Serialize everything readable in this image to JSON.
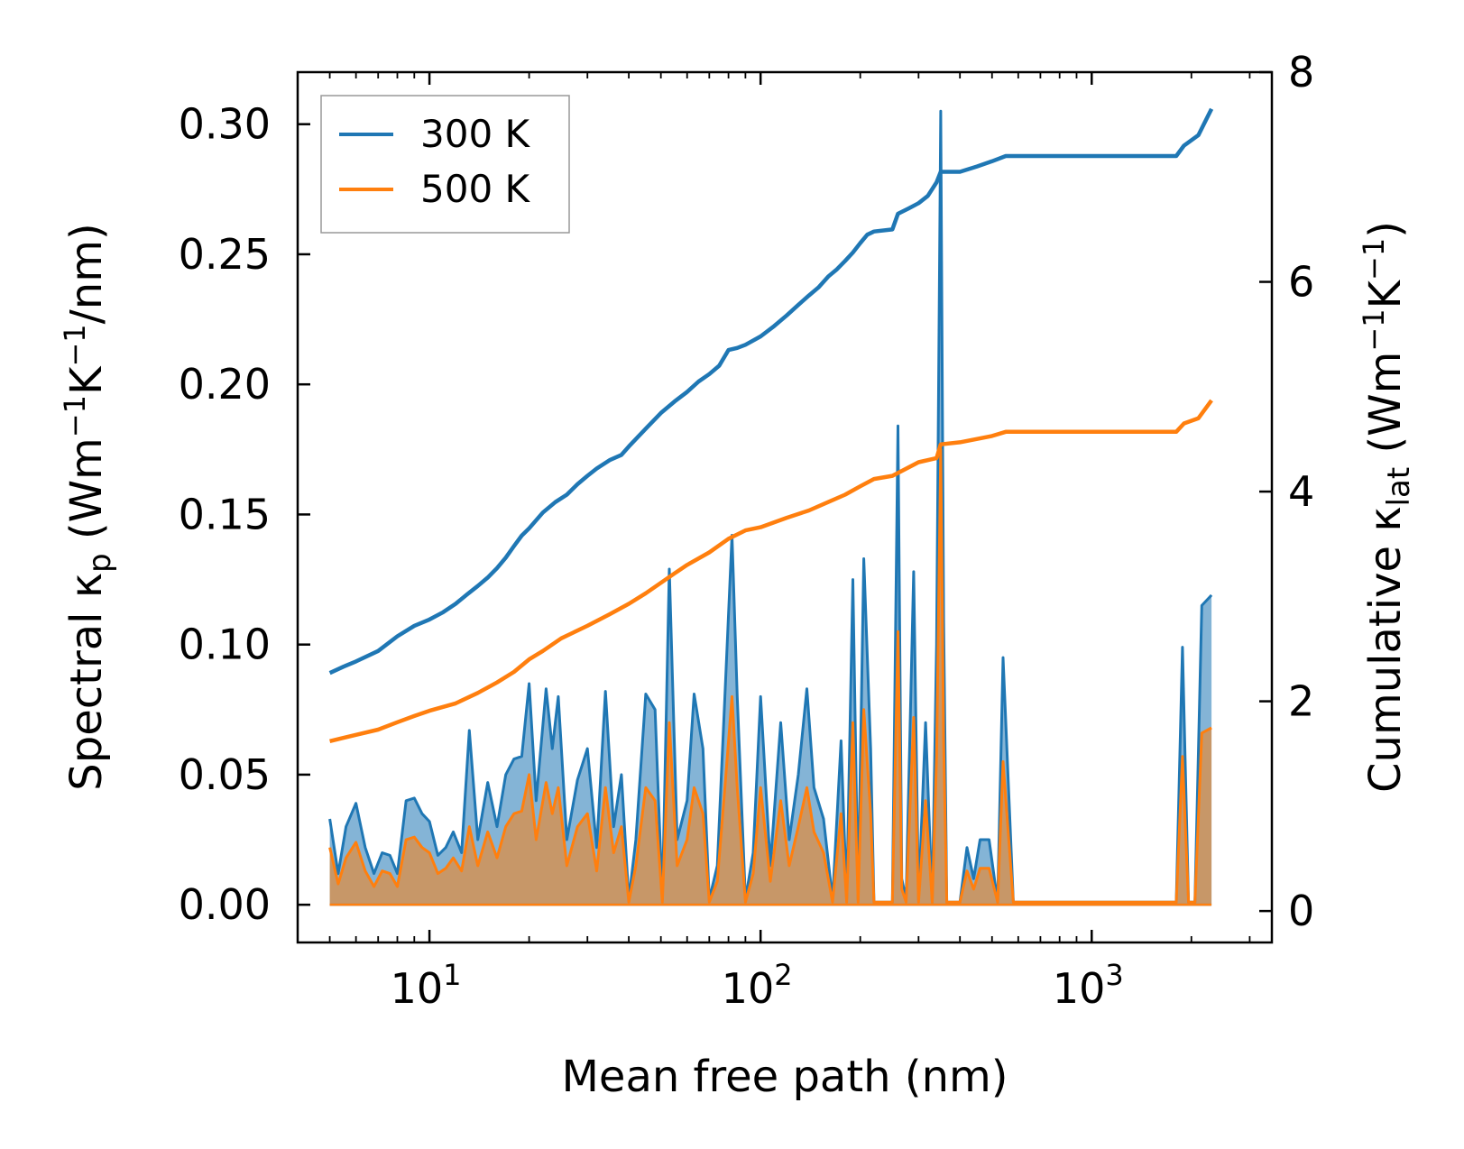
{
  "chart_data": {
    "type": "line",
    "xscale": "log",
    "xlabel": "Mean free path (nm)",
    "ylabel_left": {
      "main": "Spectral κ",
      "sub": "p",
      "unit_open": " (Wm",
      "exp1": "−1",
      "unit_mid": "K",
      "exp2": "−1",
      "unit_close": "/nm)"
    },
    "ylabel_right": {
      "main": "Cumulative κ",
      "sub": "lat",
      "unit_open": " (Wm",
      "exp1": "−1",
      "unit_mid": "K",
      "exp2": "−1",
      "unit_close": ")"
    },
    "xlim": [
      4,
      3500
    ],
    "ylim_left": [
      -0.0145,
      0.32
    ],
    "ylim_right": [
      -0.3,
      8
    ],
    "x_ticks": [
      {
        "value": 10,
        "base": "10",
        "exp": "1"
      },
      {
        "value": 100,
        "base": "10",
        "exp": "2"
      },
      {
        "value": 1000,
        "base": "10",
        "exp": "3"
      }
    ],
    "y_left_ticks": [
      {
        "value": 0.0,
        "label": "0.00"
      },
      {
        "value": 0.05,
        "label": "0.05"
      },
      {
        "value": 0.1,
        "label": "0.10"
      },
      {
        "value": 0.15,
        "label": "0.15"
      },
      {
        "value": 0.2,
        "label": "0.20"
      },
      {
        "value": 0.25,
        "label": "0.25"
      },
      {
        "value": 0.3,
        "label": "0.30"
      }
    ],
    "y_right_ticks": [
      {
        "value": 0,
        "label": "0"
      },
      {
        "value": 2,
        "label": "2"
      },
      {
        "value": 4,
        "label": "4"
      },
      {
        "value": 6,
        "label": "6"
      },
      {
        "value": 8,
        "label": "8"
      }
    ],
    "legend": {
      "position": "upper-left",
      "entries": [
        {
          "label": "300 K",
          "color": "#1f77b4"
        },
        {
          "label": "500 K",
          "color": "#ff7f0e"
        }
      ]
    },
    "series": [
      {
        "name": "300 K",
        "color": "#1f77b4",
        "spectral": {
          "x": [
            5.0,
            5.3,
            5.6,
            6.0,
            6.4,
            6.8,
            7.2,
            7.6,
            8.0,
            8.5,
            9.0,
            9.5,
            10.0,
            10.6,
            11.2,
            11.8,
            12.5,
            13.2,
            14.0,
            15.0,
            16.0,
            17.0,
            18.0,
            19.0,
            20.0,
            21.0,
            22.5,
            23.5,
            24.5,
            26.0,
            28.0,
            30.0,
            32.0,
            34.0,
            36.0,
            38.0,
            40.0,
            42.0,
            45.0,
            48.0,
            50.5,
            53.0,
            56.0,
            60.0,
            63.0,
            67.0,
            70.0,
            74.0,
            78.0,
            82.0,
            85.0,
            90.0,
            95.0,
            100.0,
            107.0,
            115.0,
            122.0,
            130.0,
            138.0,
            145.0,
            155.0,
            165.0,
            175.0,
            182.0,
            190.0,
            197.0,
            205.0,
            215.0,
            220.0,
            250.0,
            260.0,
            267.0,
            275.0,
            290.0,
            300.0,
            315.0,
            330.0,
            340.0,
            350.0,
            357.0,
            365.0,
            400.0,
            420.0,
            440.0,
            460.0,
            490.0,
            520.0,
            540.0,
            580.0,
            1800.0,
            1880.0,
            1960.0,
            2050.0,
            2150.0,
            2300.0
          ],
          "y": [
            0.033,
            0.012,
            0.03,
            0.039,
            0.022,
            0.012,
            0.02,
            0.019,
            0.012,
            0.04,
            0.041,
            0.035,
            0.032,
            0.019,
            0.022,
            0.028,
            0.02,
            0.067,
            0.025,
            0.047,
            0.03,
            0.05,
            0.056,
            0.057,
            0.085,
            0.04,
            0.083,
            0.06,
            0.08,
            0.025,
            0.048,
            0.06,
            0.022,
            0.082,
            0.03,
            0.05,
            0.002,
            0.025,
            0.081,
            0.075,
            0.002,
            0.129,
            0.025,
            0.04,
            0.081,
            0.06,
            0.002,
            0.015,
            0.08,
            0.142,
            0.08,
            0.002,
            0.02,
            0.08,
            0.015,
            0.07,
            0.025,
            0.05,
            0.083,
            0.045,
            0.033,
            0.002,
            0.063,
            0.002,
            0.125,
            0.002,
            0.133,
            0.06,
            0.001,
            0.001,
            0.184,
            0.01,
            0.002,
            0.128,
            0.002,
            0.07,
            0.001,
            0.1,
            0.305,
            0.11,
            0.001,
            0.001,
            0.022,
            0.01,
            0.025,
            0.025,
            0.001,
            0.095,
            0.001,
            0.001,
            0.099,
            0.001,
            0.001,
            0.115,
            0.119
          ]
        },
        "cumulative": {
          "x": [
            5.0,
            5.5,
            6.0,
            7.0,
            8.0,
            9.0,
            10.0,
            11.0,
            12.0,
            13.0,
            14.0,
            15.0,
            16.0,
            17.0,
            18.0,
            19.0,
            20.0,
            22.0,
            24.0,
            26.0,
            28.0,
            30.0,
            32.0,
            35.0,
            38.0,
            40.0,
            45.0,
            50.0,
            55.0,
            60.0,
            65.0,
            70.0,
            75.0,
            80.0,
            85.0,
            90.0,
            100.0,
            110.0,
            120.0,
            130.0,
            140.0,
            150.0,
            160.0,
            170.0,
            180.0,
            190.0,
            200.0,
            210.0,
            220.0,
            250.0,
            260.0,
            280.0,
            300.0,
            320.0,
            340.0,
            350.0,
            400.0,
            450.0,
            500.0,
            550.0,
            1800.0,
            1900.0,
            2100.0,
            2300.0
          ],
          "y": [
            2.27,
            2.33,
            2.38,
            2.48,
            2.62,
            2.72,
            2.78,
            2.85,
            2.93,
            3.02,
            3.1,
            3.18,
            3.27,
            3.37,
            3.48,
            3.58,
            3.65,
            3.8,
            3.9,
            3.97,
            4.07,
            4.15,
            4.22,
            4.3,
            4.35,
            4.43,
            4.6,
            4.75,
            4.86,
            4.95,
            5.05,
            5.12,
            5.2,
            5.35,
            5.37,
            5.4,
            5.48,
            5.58,
            5.68,
            5.78,
            5.87,
            5.95,
            6.05,
            6.12,
            6.2,
            6.28,
            6.37,
            6.45,
            6.48,
            6.5,
            6.65,
            6.7,
            6.75,
            6.82,
            6.95,
            7.05,
            7.05,
            7.1,
            7.15,
            7.2,
            7.2,
            7.3,
            7.4,
            7.65
          ]
        }
      },
      {
        "name": "500 K",
        "color": "#ff7f0e",
        "spectral": {
          "x": [
            5.0,
            5.3,
            5.6,
            6.0,
            6.4,
            6.8,
            7.2,
            7.6,
            8.0,
            8.5,
            9.0,
            9.5,
            10.0,
            10.6,
            11.2,
            11.8,
            12.5,
            13.2,
            14.0,
            15.0,
            16.0,
            17.0,
            18.0,
            19.0,
            20.0,
            21.0,
            22.5,
            23.5,
            24.5,
            26.0,
            28.0,
            30.0,
            32.0,
            34.0,
            36.0,
            38.0,
            40.0,
            42.0,
            45.0,
            48.0,
            50.5,
            53.0,
            56.0,
            60.0,
            63.0,
            67.0,
            70.0,
            74.0,
            78.0,
            82.0,
            85.0,
            90.0,
            95.0,
            100.0,
            107.0,
            115.0,
            122.0,
            130.0,
            138.0,
            145.0,
            155.0,
            165.0,
            175.0,
            182.0,
            190.0,
            197.0,
            205.0,
            215.0,
            220.0,
            250.0,
            260.0,
            267.0,
            275.0,
            290.0,
            300.0,
            315.0,
            330.0,
            340.0,
            350.0,
            357.0,
            365.0,
            400.0,
            420.0,
            440.0,
            460.0,
            490.0,
            520.0,
            540.0,
            580.0,
            1800.0,
            1880.0,
            1960.0,
            2050.0,
            2150.0,
            2300.0
          ],
          "y": [
            0.022,
            0.008,
            0.018,
            0.024,
            0.013,
            0.007,
            0.013,
            0.012,
            0.007,
            0.025,
            0.026,
            0.022,
            0.02,
            0.012,
            0.014,
            0.018,
            0.013,
            0.03,
            0.015,
            0.028,
            0.018,
            0.03,
            0.035,
            0.036,
            0.05,
            0.025,
            0.047,
            0.035,
            0.045,
            0.015,
            0.03,
            0.035,
            0.013,
            0.045,
            0.02,
            0.03,
            0.001,
            0.015,
            0.045,
            0.04,
            0.001,
            0.07,
            0.015,
            0.025,
            0.045,
            0.035,
            0.001,
            0.009,
            0.045,
            0.08,
            0.045,
            0.001,
            0.012,
            0.045,
            0.009,
            0.04,
            0.015,
            0.03,
            0.045,
            0.028,
            0.02,
            0.001,
            0.035,
            0.001,
            0.07,
            0.001,
            0.075,
            0.035,
            0.001,
            0.001,
            0.105,
            0.006,
            0.001,
            0.072,
            0.001,
            0.04,
            0.001,
            0.057,
            0.175,
            0.063,
            0.001,
            0.001,
            0.013,
            0.006,
            0.014,
            0.014,
            0.001,
            0.055,
            0.001,
            0.001,
            0.057,
            0.001,
            0.001,
            0.066,
            0.068
          ]
        },
        "cumulative": {
          "x": [
            5.0,
            6.0,
            7.0,
            8.0,
            9.0,
            10.0,
            12.0,
            14.0,
            16.0,
            18.0,
            20.0,
            22.0,
            25.0,
            30.0,
            35.0,
            40.0,
            45.0,
            50.0,
            55.0,
            60.0,
            70.0,
            80.0,
            90.0,
            100.0,
            120.0,
            140.0,
            160.0,
            180.0,
            200.0,
            220.0,
            250.0,
            300.0,
            340.0,
            350.0,
            400.0,
            500.0,
            550.0,
            1800.0,
            1900.0,
            2100.0,
            2300.0
          ],
          "y": [
            1.62,
            1.68,
            1.73,
            1.8,
            1.86,
            1.91,
            1.98,
            2.08,
            2.18,
            2.28,
            2.4,
            2.48,
            2.6,
            2.72,
            2.83,
            2.93,
            3.03,
            3.13,
            3.22,
            3.3,
            3.42,
            3.55,
            3.63,
            3.66,
            3.75,
            3.82,
            3.9,
            3.97,
            4.05,
            4.12,
            4.15,
            4.28,
            4.32,
            4.45,
            4.47,
            4.53,
            4.57,
            4.57,
            4.65,
            4.7,
            4.87
          ]
        }
      }
    ]
  }
}
